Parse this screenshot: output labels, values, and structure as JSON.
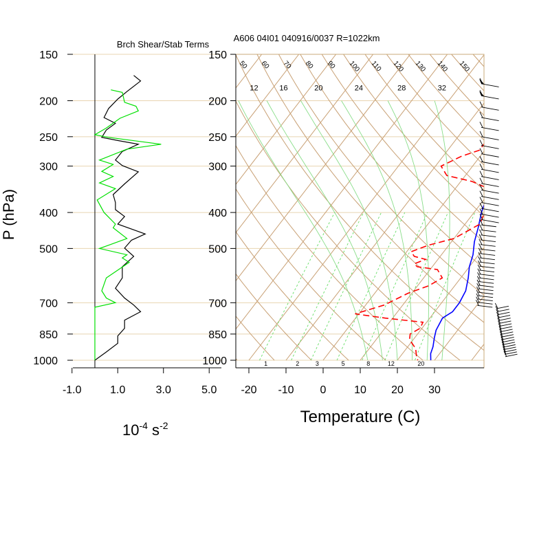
{
  "chart_data": [
    {
      "type": "line",
      "title": "Brch Shear/Stab Terms",
      "xlabel": "",
      "ylabel": "P (hPa)",
      "unit_label": {
        "base": "10",
        "exp1": "-4",
        "mid": " s",
        "exp2": "-2"
      },
      "xlim": [
        -1.0,
        5.0
      ],
      "xticks": [
        "-1.0",
        "1.0",
        "3.0",
        "5.0"
      ],
      "ylim": [
        1000,
        150
      ],
      "yscale": "log",
      "yticks": [
        "150",
        "200",
        "250",
        "300",
        "400",
        "500",
        "700",
        "850",
        "1000"
      ],
      "grid": "horizontal at pressure ticks",
      "series": [
        {
          "color": "#000000",
          "points": [
            [
              1.7,
              171
            ],
            [
              2.0,
              177
            ],
            [
              1.4,
              189
            ],
            [
              1.0,
              198
            ],
            [
              0.6,
              210
            ],
            [
              0.4,
              222
            ],
            [
              0.9,
              230
            ],
            [
              0.5,
              240
            ],
            [
              0.3,
              251
            ],
            [
              1.0,
              256
            ],
            [
              1.9,
              262
            ],
            [
              1.2,
              274
            ],
            [
              0.9,
              289
            ],
            [
              1.2,
              299
            ],
            [
              1.9,
              311
            ],
            [
              1.3,
              335
            ],
            [
              0.8,
              358
            ],
            [
              0.9,
              376
            ],
            [
              0.9,
              393
            ],
            [
              1.3,
              410
            ],
            [
              1.0,
              430
            ],
            [
              2.2,
              457
            ],
            [
              1.6,
              475
            ],
            [
              1.3,
              499
            ],
            [
              1.7,
              525
            ],
            [
              1.2,
              560
            ],
            [
              1.2,
              600
            ],
            [
              0.9,
              640
            ],
            [
              1.3,
              680
            ],
            [
              1.7,
              710
            ],
            [
              2.0,
              740
            ],
            [
              1.3,
              780
            ],
            [
              1.3,
              820
            ],
            [
              1.0,
              860
            ],
            [
              1.0,
              900
            ],
            [
              0.5,
              950
            ],
            [
              0.0,
              1000
            ]
          ]
        },
        {
          "color": "#00e000",
          "points": [
            [
              0.7,
              187
            ],
            [
              1.2,
              190
            ],
            [
              1.3,
              202
            ],
            [
              1.8,
              207
            ],
            [
              1.9,
              213
            ],
            [
              1.1,
              223
            ],
            [
              0.5,
              237
            ],
            [
              0.0,
              247
            ],
            [
              0.6,
              251
            ],
            [
              2.9,
              262
            ],
            [
              1.4,
              270
            ],
            [
              0.2,
              289
            ],
            [
              0.8,
              297
            ],
            [
              0.3,
              310
            ],
            [
              0.8,
              320
            ],
            [
              0.2,
              333
            ],
            [
              0.9,
              345
            ],
            [
              0.1,
              370
            ],
            [
              0.4,
              400
            ],
            [
              0.9,
              430
            ],
            [
              0.8,
              440
            ],
            [
              1.4,
              470
            ],
            [
              0.6,
              490
            ],
            [
              0.2,
              500
            ],
            [
              1.4,
              520
            ],
            [
              1.2,
              530
            ],
            [
              1.5,
              545
            ],
            [
              0.5,
              600
            ],
            [
              0.3,
              650
            ],
            [
              0.5,
              680
            ],
            [
              0.9,
              700
            ],
            [
              0.0,
              720
            ],
            [
              0.0,
              1000
            ]
          ]
        }
      ]
    },
    {
      "type": "line",
      "title": "A606 04I01 040916/0037 R=1022km",
      "xlabel": "Temperature (C)",
      "ylabel": "",
      "xlim": [
        -23,
        43
      ],
      "xticks": [
        "-20",
        "-10",
        "0",
        "10",
        "20",
        "30"
      ],
      "ylim": [
        1000,
        150
      ],
      "yscale": "log",
      "yticks": [
        "150",
        "200",
        "250",
        "300",
        "400",
        "500",
        "700",
        "850",
        "1000"
      ],
      "mixing_ratio_labels": [
        "12",
        "16",
        "20",
        "24",
        "28",
        "32"
      ],
      "mixing_ratio_bottom_labels": [
        "1",
        "2",
        "3",
        "5",
        "8",
        "12",
        "20"
      ],
      "dry_adiabat_labels": [
        "50",
        "60",
        "70",
        "80",
        "90",
        "100",
        "110",
        "120",
        "130",
        "140",
        "150"
      ],
      "series": [
        {
          "name": "",
          "color": "#0000ff",
          "style": "solid",
          "points": [
            [
              -1.3,
              170
            ],
            [
              0.5,
              190
            ],
            [
              2.5,
              215
            ],
            [
              4.5,
              240
            ],
            [
              6.5,
              270
            ],
            [
              8.0,
              300
            ],
            [
              8.3,
              330
            ],
            [
              10.0,
              360
            ],
            [
              12.0,
              400
            ],
            [
              14.3,
              440
            ],
            [
              16.2,
              480
            ],
            [
              18.5,
              520
            ],
            [
              20.0,
              560
            ],
            [
              22.0,
              600
            ],
            [
              24.0,
              650
            ],
            [
              24.8,
              700
            ],
            [
              24.8,
              740
            ],
            [
              23.4,
              770
            ],
            [
              24.2,
              830
            ],
            [
              25.3,
              870
            ],
            [
              26.8,
              920
            ],
            [
              27.6,
              960
            ],
            [
              29.0,
              1000
            ]
          ]
        },
        {
          "name": "",
          "color": "#ff0000",
          "style": "dashed",
          "points": [
            [
              -7.5,
              198
            ],
            [
              -4.5,
              210
            ],
            [
              -1.0,
              220
            ],
            [
              1.2,
              240
            ],
            [
              0.5,
              252
            ],
            [
              -1.5,
              262
            ],
            [
              -1.5,
              272
            ],
            [
              -5.0,
              282
            ],
            [
              -8.5,
              300
            ],
            [
              -5.0,
              318
            ],
            [
              3.0,
              330
            ],
            [
              9.0,
              345
            ],
            [
              12.0,
              380
            ],
            [
              14.0,
              430
            ],
            [
              10.0,
              470
            ],
            [
              4.5,
              490
            ],
            [
              1.2,
              510
            ],
            [
              3.0,
              525
            ],
            [
              6.7,
              535
            ],
            [
              4.5,
              550
            ],
            [
              6.0,
              560
            ],
            [
              12.0,
              570
            ],
            [
              15.0,
              600
            ],
            [
              13.0,
              630
            ],
            [
              9.0,
              660
            ],
            [
              5.0,
              710
            ],
            [
              -1.0,
              750
            ],
            [
              8.0,
              770
            ],
            [
              19.0,
              790
            ],
            [
              19.5,
              820
            ],
            [
              18.0,
              850
            ],
            [
              19.0,
              880
            ],
            [
              22.5,
              930
            ],
            [
              24.5,
              980
            ],
            [
              25.5,
              1000
            ]
          ]
        }
      ]
    }
  ]
}
